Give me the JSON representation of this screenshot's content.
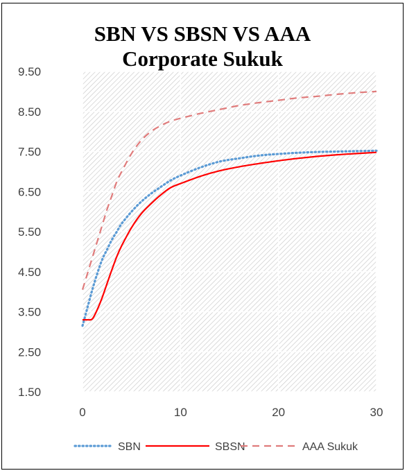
{
  "chart_data": {
    "type": "line",
    "title_lines": [
      "SBN VS SBSN VS AAA",
      "Corporate Sukuk"
    ],
    "xlabel": "",
    "ylabel": "",
    "xlim": [
      0,
      30
    ],
    "ylim": [
      1.5,
      9.5
    ],
    "x_ticks": [
      "0",
      "10",
      "20",
      "30"
    ],
    "y_ticks": [
      "1.50",
      "2.50",
      "3.50",
      "4.50",
      "5.50",
      "6.50",
      "7.50",
      "8.50",
      "9.50"
    ],
    "grid": true,
    "legend_position": "bottom",
    "x": [
      0,
      0.5,
      1,
      1.5,
      2,
      2.5,
      3,
      3.5,
      4,
      5,
      6,
      7,
      8,
      9,
      10,
      12,
      14,
      16,
      18,
      20,
      22,
      24,
      26,
      28,
      30
    ],
    "series": [
      {
        "name": "SBN",
        "style": "dotted",
        "color": "#5b9bd5",
        "values": [
          3.15,
          3.6,
          4.05,
          4.45,
          4.8,
          5.05,
          5.3,
          5.5,
          5.7,
          6.0,
          6.25,
          6.45,
          6.62,
          6.78,
          6.9,
          7.1,
          7.25,
          7.33,
          7.4,
          7.44,
          7.47,
          7.49,
          7.5,
          7.51,
          7.52
        ]
      },
      {
        "name": "SBSN",
        "style": "solid",
        "color": "#ff0000",
        "values": [
          3.3,
          3.3,
          3.32,
          3.55,
          3.85,
          4.2,
          4.55,
          4.88,
          5.15,
          5.6,
          5.95,
          6.2,
          6.42,
          6.6,
          6.7,
          6.88,
          7.02,
          7.12,
          7.2,
          7.27,
          7.33,
          7.38,
          7.42,
          7.45,
          7.48
        ]
      },
      {
        "name": "AAA Sukuk",
        "style": "dashed",
        "color": "#e07b7b",
        "values": [
          4.05,
          4.45,
          4.85,
          5.25,
          5.65,
          6.05,
          6.4,
          6.75,
          7.0,
          7.45,
          7.78,
          8.0,
          8.15,
          8.26,
          8.33,
          8.45,
          8.55,
          8.65,
          8.72,
          8.78,
          8.84,
          8.88,
          8.93,
          8.97,
          9.0
        ]
      }
    ]
  }
}
